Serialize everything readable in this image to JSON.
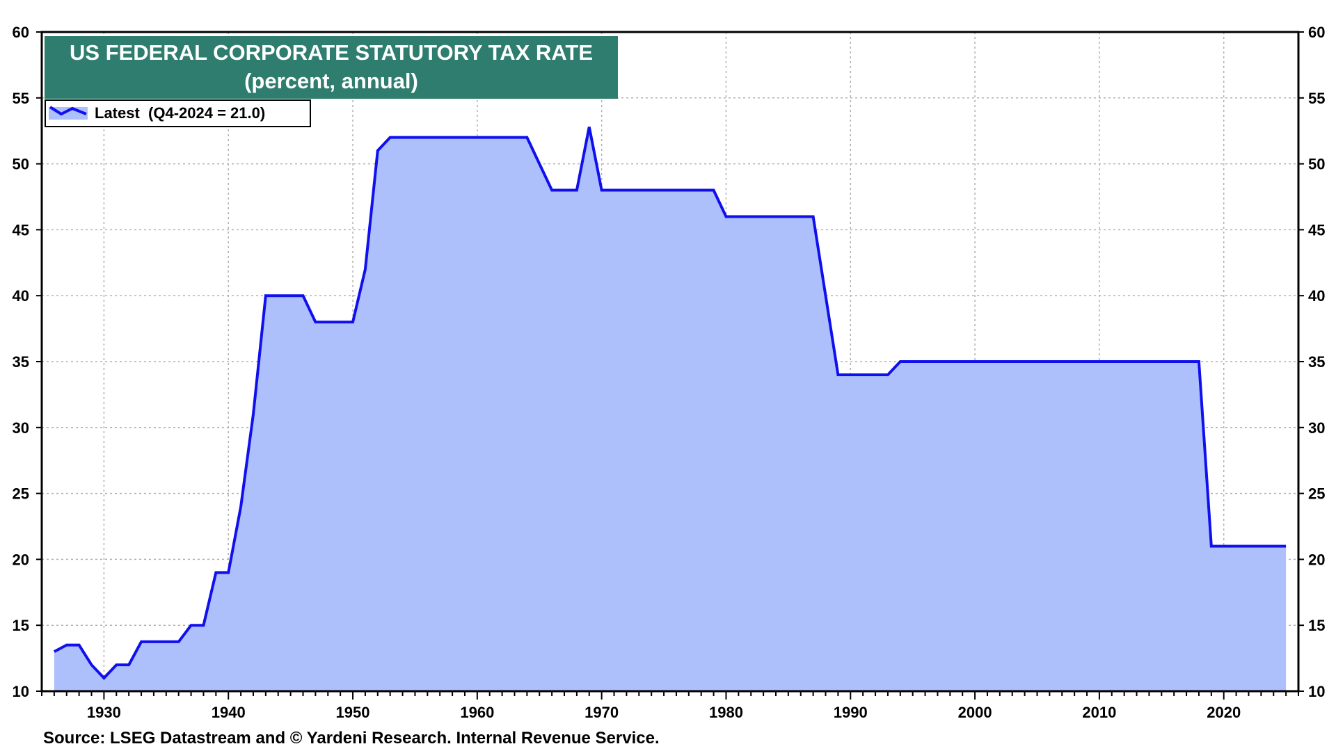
{
  "colors": {
    "line": "#1010ee",
    "area_fill": "#adc0fb",
    "title_bg": "#2e7d6e",
    "title_text": "#ffffff",
    "grid": "#b0b0b0",
    "axis": "#000000"
  },
  "source": "Source: LSEG Datastream and © Yardeni Research. Internal Revenue Service.",
  "chart_data": {
    "type": "area",
    "title": "US FEDERAL CORPORATE STATUTORY TAX RATE",
    "subtitle": "(percent, annual)",
    "legend": {
      "position": "top-left",
      "entries": [
        {
          "label": "Latest  (Q4-2024 = 21.0)",
          "icon": "line-swatch-icon"
        }
      ]
    },
    "xlim": [
      1925,
      2026
    ],
    "ylim": [
      10,
      60
    ],
    "x_ticks": [
      1930,
      1940,
      1950,
      1960,
      1970,
      1980,
      1990,
      2000,
      2010,
      2020
    ],
    "x_tick_labels": [
      "1930",
      "1940",
      "1950",
      "1960",
      "1970",
      "1980",
      "1990",
      "2000",
      "2010",
      "2020"
    ],
    "y_ticks": [
      10,
      15,
      20,
      25,
      30,
      35,
      40,
      45,
      50,
      55,
      60
    ],
    "y_tick_labels": [
      "10",
      "15",
      "20",
      "25",
      "30",
      "35",
      "40",
      "45",
      "50",
      "55",
      "60"
    ],
    "y_axis_both_sides": true,
    "grid": true,
    "series": [
      {
        "name": "Latest  (Q4-2024 = 21.0)",
        "x": [
          1926,
          1927,
          1928,
          1929,
          1930,
          1931,
          1932,
          1933,
          1934,
          1935,
          1936,
          1937,
          1938,
          1939,
          1940,
          1941,
          1942,
          1943,
          1944,
          1945,
          1946,
          1947,
          1948,
          1949,
          1950,
          1951,
          1952,
          1953,
          1954,
          1955,
          1956,
          1957,
          1958,
          1959,
          1960,
          1961,
          1962,
          1963,
          1964,
          1965,
          1966,
          1967,
          1968,
          1969,
          1970,
          1971,
          1972,
          1973,
          1974,
          1975,
          1976,
          1977,
          1978,
          1979,
          1980,
          1981,
          1982,
          1983,
          1984,
          1985,
          1986,
          1987,
          1988,
          1989,
          1990,
          1991,
          1992,
          1993,
          1994,
          1995,
          1996,
          1997,
          1998,
          1999,
          2000,
          2001,
          2002,
          2003,
          2004,
          2005,
          2006,
          2007,
          2008,
          2009,
          2010,
          2011,
          2012,
          2013,
          2014,
          2015,
          2016,
          2017,
          2018,
          2019,
          2020,
          2021,
          2022,
          2023,
          2024,
          2025
        ],
        "values": [
          13.0,
          13.5,
          13.5,
          12.0,
          11.0,
          12.0,
          12.0,
          13.75,
          13.75,
          13.75,
          13.75,
          15.0,
          15.0,
          19.0,
          19.0,
          24.0,
          31.0,
          40.0,
          40.0,
          40.0,
          40.0,
          38.0,
          38.0,
          38.0,
          38.0,
          42.0,
          51.0,
          52.0,
          52.0,
          52.0,
          52.0,
          52.0,
          52.0,
          52.0,
          52.0,
          52.0,
          52.0,
          52.0,
          52.0,
          50.0,
          48.0,
          48.0,
          48.0,
          52.8,
          48.0,
          48.0,
          48.0,
          48.0,
          48.0,
          48.0,
          48.0,
          48.0,
          48.0,
          48.0,
          46.0,
          46.0,
          46.0,
          46.0,
          46.0,
          46.0,
          46.0,
          46.0,
          40.0,
          34.0,
          34.0,
          34.0,
          34.0,
          34.0,
          35.0,
          35.0,
          35.0,
          35.0,
          35.0,
          35.0,
          35.0,
          35.0,
          35.0,
          35.0,
          35.0,
          35.0,
          35.0,
          35.0,
          35.0,
          35.0,
          35.0,
          35.0,
          35.0,
          35.0,
          35.0,
          35.0,
          35.0,
          35.0,
          35.0,
          21.0,
          21.0,
          21.0,
          21.0,
          21.0,
          21.0,
          21.0
        ]
      }
    ]
  }
}
